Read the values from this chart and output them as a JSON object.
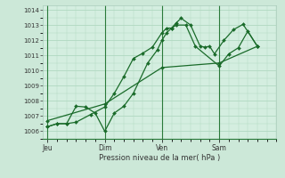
{
  "bg_color": "#cce8d8",
  "plot_bg_color": "#d4eee0",
  "grid_color": "#b0d8c0",
  "line_color": "#1a6b2a",
  "marker_color": "#1a6b2a",
  "xlabel": "Pression niveau de la mer( hPa )",
  "ylim": [
    1005.5,
    1014.3
  ],
  "yticks": [
    1006,
    1007,
    1008,
    1009,
    1010,
    1011,
    1012,
    1013,
    1014
  ],
  "xtick_labels": [
    "Jeu",
    "Dim",
    "Ven",
    "Sam"
  ],
  "xtick_positions": [
    0,
    60,
    120,
    180
  ],
  "xlim": [
    -5,
    240
  ],
  "line1_x": [
    0,
    10,
    20,
    30,
    45,
    60,
    70,
    80,
    90,
    100,
    110,
    120,
    125,
    130,
    135,
    140,
    150,
    160,
    165,
    170,
    175,
    185,
    195,
    205,
    220
  ],
  "line1_y": [
    1006.3,
    1006.5,
    1006.5,
    1006.6,
    1007.1,
    1007.6,
    1008.5,
    1009.6,
    1010.8,
    1011.15,
    1011.55,
    1012.5,
    1012.8,
    1012.8,
    1013.15,
    1013.45,
    1013.0,
    1011.6,
    1011.55,
    1011.6,
    1011.1,
    1012.0,
    1012.7,
    1013.05,
    1011.6
  ],
  "line2_x": [
    0,
    10,
    20,
    30,
    40,
    50,
    60,
    70,
    80,
    90,
    105,
    115,
    120,
    125,
    130,
    135,
    145,
    155,
    180,
    190,
    200,
    210,
    220
  ],
  "line2_y": [
    1006.3,
    1006.5,
    1006.5,
    1007.65,
    1007.6,
    1007.2,
    1006.0,
    1007.2,
    1007.65,
    1008.5,
    1010.5,
    1011.35,
    1012.0,
    1012.5,
    1012.8,
    1013.0,
    1013.0,
    1011.6,
    1010.3,
    1011.1,
    1011.5,
    1012.6,
    1011.6
  ],
  "line3_x": [
    0,
    60,
    120,
    180,
    220
  ],
  "line3_y": [
    1006.7,
    1007.8,
    1010.2,
    1010.5,
    1011.6
  ]
}
